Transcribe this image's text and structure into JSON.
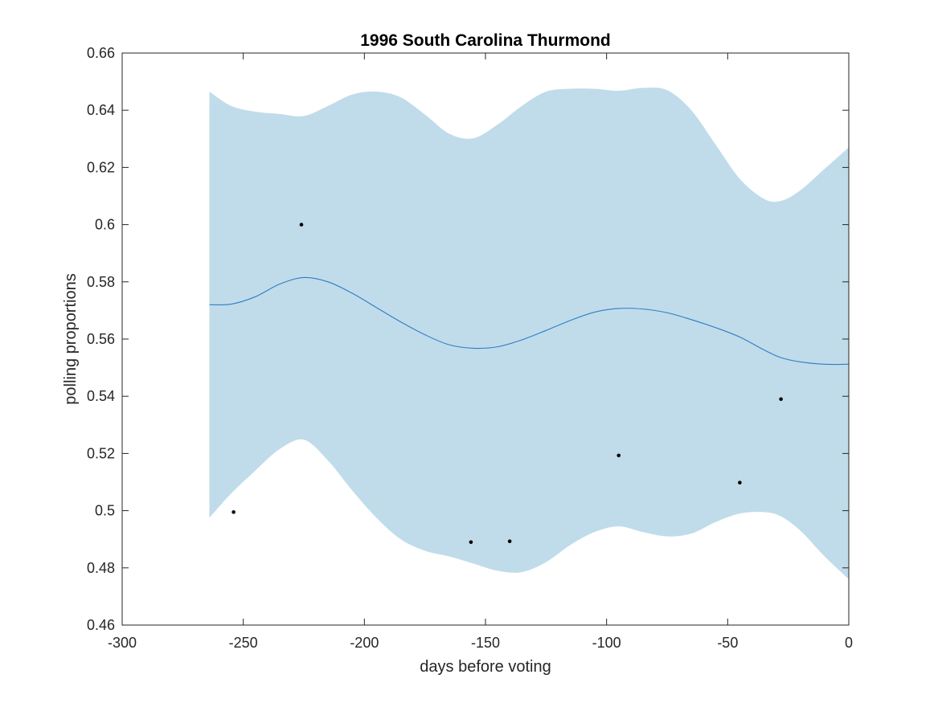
{
  "chart_data": {
    "type": "line",
    "title": "1996 South Carolina Thurmond",
    "xlabel": "days before voting",
    "ylabel": "polling proportions",
    "xlim": [
      -300,
      0
    ],
    "ylim": [
      0.46,
      0.66
    ],
    "xticks": [
      -300,
      -250,
      -200,
      -150,
      -100,
      -50,
      0
    ],
    "xtick_labels": [
      "-300",
      "-250",
      "-200",
      "-150",
      "-100",
      "-50",
      "0"
    ],
    "yticks": [
      0.46,
      0.48,
      0.5,
      0.52,
      0.54,
      0.56,
      0.58,
      0.6,
      0.62,
      0.64,
      0.66
    ],
    "ytick_labels": [
      "0.46",
      "0.48",
      "0.5",
      "0.52",
      "0.54",
      "0.56",
      "0.58",
      "0.6",
      "0.62",
      "0.64",
      "0.66"
    ],
    "grid": false,
    "colors": {
      "band": "#c0dcea",
      "mean": "#2f7dc4",
      "points": "#000000",
      "axes": "#262626"
    },
    "band": {
      "x": [
        -264,
        -255,
        -245,
        -235,
        -225,
        -215,
        -205,
        -195,
        -185,
        -175,
        -165,
        -155,
        -145,
        -135,
        -125,
        -115,
        -105,
        -95,
        -85,
        -75,
        -65,
        -55,
        -45,
        -35,
        -28,
        -20,
        -10,
        0
      ],
      "upper": [
        0.6465,
        0.6415,
        0.6395,
        0.6387,
        0.638,
        0.6415,
        0.6455,
        0.6465,
        0.6445,
        0.6385,
        0.6318,
        0.6302,
        0.635,
        0.6415,
        0.6465,
        0.6475,
        0.6475,
        0.6468,
        0.6478,
        0.647,
        0.64,
        0.628,
        0.616,
        0.609,
        0.6083,
        0.612,
        0.6195,
        0.627
      ],
      "lower": [
        0.4975,
        0.506,
        0.514,
        0.5215,
        0.5248,
        0.5175,
        0.507,
        0.4975,
        0.49,
        0.486,
        0.484,
        0.4815,
        0.479,
        0.4785,
        0.482,
        0.488,
        0.4925,
        0.4945,
        0.4925,
        0.491,
        0.492,
        0.496,
        0.499,
        0.4995,
        0.498,
        0.493,
        0.484,
        0.476
      ]
    },
    "series": [
      {
        "x": [
          -264,
          -255,
          -245,
          -235,
          -225,
          -215,
          -205,
          -195,
          -185,
          -175,
          -165,
          -155,
          -145,
          -135,
          -125,
          -115,
          -105,
          -95,
          -85,
          -75,
          -65,
          -55,
          -45,
          -35,
          -28,
          -20,
          -10,
          0
        ],
        "values": [
          0.572,
          0.5722,
          0.5748,
          0.5792,
          0.5815,
          0.58,
          0.576,
          0.571,
          0.566,
          0.5615,
          0.558,
          0.5568,
          0.5573,
          0.5597,
          0.563,
          0.5665,
          0.5694,
          0.5707,
          0.5705,
          0.5692,
          0.5668,
          0.564,
          0.5607,
          0.5562,
          0.5535,
          0.552,
          0.5512,
          0.5512
        ]
      }
    ],
    "points": {
      "x": [
        -254,
        -226,
        -156,
        -140,
        -95,
        -45,
        -28
      ],
      "y": [
        0.4995,
        0.6,
        0.489,
        0.4893,
        0.5193,
        0.5098,
        0.539
      ]
    }
  }
}
